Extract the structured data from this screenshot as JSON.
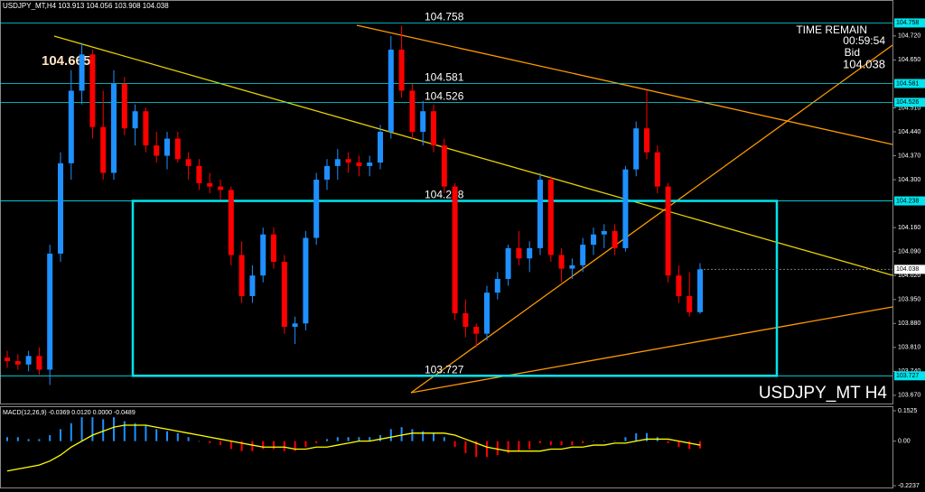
{
  "chart_data": {
    "type": "candlestick",
    "header": "USDJPY_MT,H4  103.913 104.056 103.908 104.038",
    "symbol_label": "USDJPY_MT H4",
    "time_remain_label": "TIME REMAIN",
    "time_remain": "00:59:54",
    "bid_label": "Bid",
    "bid": 104.038,
    "high_annotation": 104.665,
    "up_color": "#1e90ff",
    "down_color": "#ff0000",
    "level_color": "#00e5ee",
    "ylim": [
      103.646,
      104.825
    ],
    "yticks": [
      {
        "value": 104.72,
        "label": "104.720"
      },
      {
        "value": 104.65,
        "label": "104.650"
      },
      {
        "value": 104.51,
        "label": "104.510"
      },
      {
        "value": 104.44,
        "label": "104.440"
      },
      {
        "value": 104.37,
        "label": "104.370"
      },
      {
        "value": 104.3,
        "label": "104.300"
      },
      {
        "value": 104.16,
        "label": "104.160"
      },
      {
        "value": 104.09,
        "label": "104.090"
      },
      {
        "value": 104.02,
        "label": "104.020"
      },
      {
        "value": 103.95,
        "label": "103.950"
      },
      {
        "value": 103.88,
        "label": "103.880"
      },
      {
        "value": 103.81,
        "label": "103.810"
      },
      {
        "value": 103.74,
        "label": "103.740"
      },
      {
        "value": 103.67,
        "label": "103.670"
      }
    ],
    "levels": [
      104.758,
      104.581,
      104.526,
      104.238,
      103.727
    ],
    "ohlc": [
      [
        103.78,
        103.8,
        103.75,
        103.77
      ],
      [
        103.77,
        103.79,
        103.745,
        103.76
      ],
      [
        103.76,
        103.8,
        103.74,
        103.785
      ],
      [
        103.785,
        103.81,
        103.73,
        103.745
      ],
      [
        103.745,
        104.11,
        103.7,
        104.084
      ],
      [
        104.084,
        104.38,
        104.06,
        104.348
      ],
      [
        104.348,
        104.62,
        104.3,
        104.56
      ],
      [
        104.56,
        104.7,
        104.52,
        104.666
      ],
      [
        104.666,
        104.68,
        104.42,
        104.454
      ],
      [
        104.454,
        104.56,
        104.3,
        104.32
      ],
      [
        104.32,
        104.62,
        104.3,
        104.58
      ],
      [
        104.58,
        104.6,
        104.43,
        104.45
      ],
      [
        104.45,
        104.52,
        104.4,
        104.5
      ],
      [
        104.5,
        104.51,
        104.38,
        104.4
      ],
      [
        104.4,
        104.44,
        104.35,
        104.37
      ],
      [
        104.37,
        104.44,
        104.33,
        104.42
      ],
      [
        104.42,
        104.44,
        104.35,
        104.36
      ],
      [
        104.36,
        104.38,
        104.3,
        104.34
      ],
      [
        104.34,
        104.36,
        104.27,
        104.29
      ],
      [
        104.29,
        104.32,
        104.26,
        104.28
      ],
      [
        104.28,
        104.3,
        104.24,
        104.27
      ],
      [
        104.27,
        104.28,
        104.05,
        104.08
      ],
      [
        104.08,
        104.12,
        103.94,
        103.96
      ],
      [
        103.96,
        104.05,
        103.94,
        104.02
      ],
      [
        104.02,
        104.16,
        104.0,
        104.14
      ],
      [
        104.14,
        104.16,
        104.04,
        104.06
      ],
      [
        104.06,
        104.08,
        103.85,
        103.87
      ],
      [
        103.87,
        103.9,
        103.82,
        103.88
      ],
      [
        103.88,
        104.15,
        103.86,
        104.13
      ],
      [
        104.13,
        104.32,
        104.11,
        104.3
      ],
      [
        104.3,
        104.36,
        104.27,
        104.34
      ],
      [
        104.34,
        104.39,
        104.3,
        104.36
      ],
      [
        104.36,
        104.38,
        104.32,
        104.35
      ],
      [
        104.35,
        104.37,
        104.31,
        104.34
      ],
      [
        104.34,
        104.37,
        104.31,
        104.35
      ],
      [
        104.35,
        104.46,
        104.33,
        104.44
      ],
      [
        104.44,
        104.72,
        104.42,
        104.68
      ],
      [
        104.68,
        104.75,
        104.54,
        104.56
      ],
      [
        104.56,
        104.58,
        104.42,
        104.44
      ],
      [
        104.44,
        104.53,
        104.4,
        104.5
      ],
      [
        104.5,
        104.52,
        104.38,
        104.4
      ],
      [
        104.4,
        104.42,
        104.26,
        104.28
      ],
      [
        104.28,
        104.29,
        103.89,
        103.91
      ],
      [
        103.91,
        103.95,
        103.84,
        103.87
      ],
      [
        103.87,
        103.88,
        103.81,
        103.85
      ],
      [
        103.85,
        103.99,
        103.83,
        103.97
      ],
      [
        103.97,
        104.03,
        103.95,
        104.01
      ],
      [
        104.01,
        104.11,
        103.99,
        104.1
      ],
      [
        104.1,
        104.15,
        104.05,
        104.07
      ],
      [
        104.07,
        104.12,
        104.03,
        104.1
      ],
      [
        104.1,
        104.32,
        104.08,
        104.3
      ],
      [
        104.3,
        104.31,
        104.06,
        104.08
      ],
      [
        104.08,
        104.1,
        104.0,
        104.04
      ],
      [
        104.04,
        104.07,
        104.01,
        104.05
      ],
      [
        104.05,
        104.13,
        104.03,
        104.11
      ],
      [
        104.11,
        104.16,
        104.08,
        104.14
      ],
      [
        104.14,
        104.17,
        104.1,
        104.15
      ],
      [
        104.15,
        104.17,
        104.08,
        104.1
      ],
      [
        104.1,
        104.34,
        104.09,
        104.33
      ],
      [
        104.33,
        104.47,
        104.31,
        104.45
      ],
      [
        104.45,
        104.56,
        104.36,
        104.38
      ],
      [
        104.38,
        104.4,
        104.26,
        104.28
      ],
      [
        104.28,
        104.29,
        104.0,
        104.02
      ],
      [
        104.02,
        104.05,
        103.94,
        103.96
      ],
      [
        103.96,
        104.03,
        103.9,
        103.913
      ],
      [
        103.913,
        104.056,
        103.908,
        104.038
      ]
    ],
    "macd": {
      "title": "MACD(12,26,9) -0.0369 0.0120 0.0000 -0.0489",
      "ylim": [
        -0.2237,
        0.1525
      ],
      "yticks": [
        0.1525,
        {
          "value": 0,
          "label": "0.00"
        },
        -0.2237
      ],
      "histogram": [
        0.02,
        0.02,
        0.01,
        0.01,
        0.03,
        0.06,
        0.09,
        0.12,
        0.12,
        0.11,
        0.12,
        0.1,
        0.09,
        0.08,
        0.06,
        0.05,
        0.04,
        0.02,
        0.0,
        -0.01,
        -0.02,
        -0.04,
        -0.05,
        -0.05,
        -0.04,
        -0.04,
        -0.05,
        -0.05,
        -0.03,
        -0.01,
        0.01,
        0.02,
        0.02,
        0.02,
        0.02,
        0.03,
        0.06,
        0.07,
        0.06,
        0.05,
        0.04,
        0.02,
        -0.03,
        -0.06,
        -0.08,
        -0.08,
        -0.07,
        -0.06,
        -0.05,
        -0.04,
        -0.01,
        -0.02,
        -0.02,
        -0.02,
        -0.01,
        0.0,
        0.0,
        0.0,
        0.02,
        0.04,
        0.04,
        0.02,
        -0.01,
        -0.03,
        -0.04,
        -0.0369
      ],
      "signal": [
        -0.15,
        -0.14,
        -0.13,
        -0.12,
        -0.1,
        -0.07,
        -0.03,
        0.0,
        0.03,
        0.05,
        0.07,
        0.08,
        0.08,
        0.08,
        0.07,
        0.06,
        0.05,
        0.04,
        0.03,
        0.02,
        0.01,
        0.0,
        -0.01,
        -0.02,
        -0.03,
        -0.03,
        -0.03,
        -0.04,
        -0.04,
        -0.03,
        -0.03,
        -0.02,
        -0.01,
        0.0,
        0.0,
        0.01,
        0.02,
        0.03,
        0.04,
        0.04,
        0.04,
        0.04,
        0.03,
        0.01,
        -0.01,
        -0.03,
        -0.04,
        -0.05,
        -0.05,
        -0.05,
        -0.05,
        -0.04,
        -0.04,
        -0.03,
        -0.03,
        -0.02,
        -0.02,
        -0.01,
        -0.01,
        0.0,
        0.01,
        0.01,
        0.01,
        0.0,
        -0.01,
        -0.02
      ],
      "signal_color": "#ffff00"
    }
  }
}
